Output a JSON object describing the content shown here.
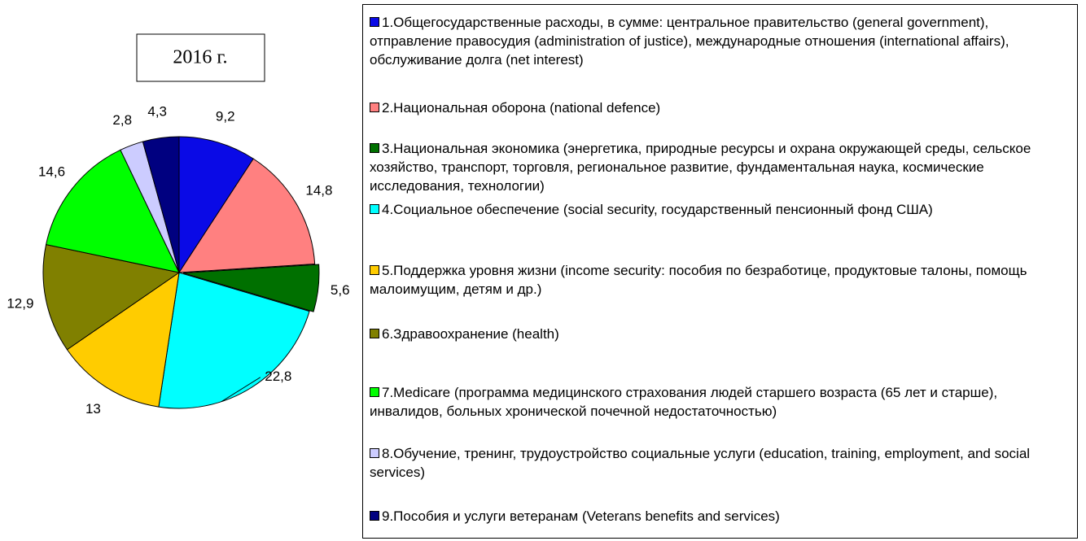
{
  "chart_data": {
    "type": "pie",
    "title": "2016 г.",
    "categories": [
      "1.Общегосударственные расходы, в сумме: центральное правительство (general government), отправление правосудия (administration of justice), международные отношения (international affairs), обслуживание долга (net interest)",
      "2.Национальная оборона (national defence)",
      "3.Национальная экономика (энергетика, природные ресурсы и охрана окружающей среды, сельское хозяйство, транспорт, торговля, региональное развитие, фундаментальная наука, космические исследования, технологии)",
      "4.Социальное обеспечение (social security, государственный пенсионный фонд США)",
      "5.Поддержка уровня жизни (income security: пособия по безработице, продуктовые талоны, помощь малоимущим, детям и др.)",
      "6.Здравоохранение (health)",
      "7.Medicare (программа медицинского страхования людей старшего возраста (65 лет и старше), инвалидов, больных хронической почечной недостаточностью)",
      "8.Обучение, тренинг, трудоустройство социальные услуги (education, training, employment, and social services)",
      "9.Пособия и услуги ветеранам (Veterans benefits and services)"
    ],
    "values": [
      9.2,
      14.8,
      5.6,
      22.8,
      13,
      12.9,
      14.6,
      2.8,
      4.3
    ],
    "value_labels": [
      "9,2",
      "14,8",
      "5,6",
      "22,8",
      "13",
      "12,9",
      "14,6",
      "2,8",
      "4,3"
    ],
    "colors": [
      "#0a0ae6",
      "#ff8080",
      "#007000",
      "#00ffff",
      "#ffcc00",
      "#808000",
      "#00ff00",
      "#ccccff",
      "#000080"
    ]
  }
}
